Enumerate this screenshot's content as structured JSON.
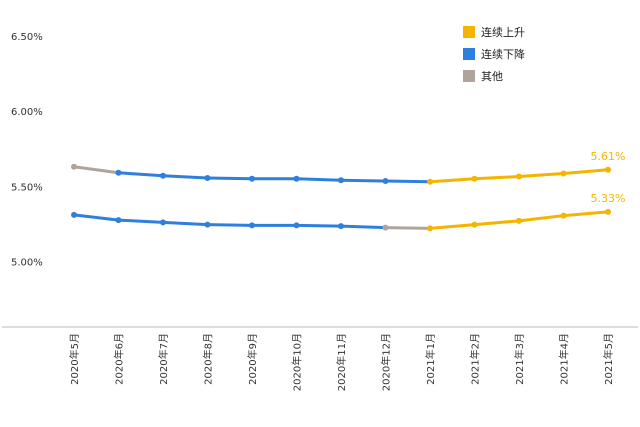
{
  "chart_data": {
    "type": "line",
    "categories": [
      "2020年5月",
      "2020年6月",
      "2020年7月",
      "2020年8月",
      "2020年9月",
      "2020年10月",
      "2020年11月",
      "2020年12月",
      "2021年1月",
      "2021年2月",
      "2021年3月",
      "2021年4月",
      "2021年5月"
    ],
    "series": [
      {
        "values": [
          5.63,
          5.59,
          5.57,
          5.555,
          5.55,
          5.55,
          5.54,
          5.535,
          5.53,
          5.55,
          5.565,
          5.585,
          5.61
        ],
        "segment_types": [
          "其他",
          "连续下降",
          "连续下降",
          "连续下降",
          "连续下降",
          "连续下降",
          "连续下降",
          "连续下降",
          "连续上升",
          "连续上升",
          "连续上升",
          "连续上升"
        ],
        "end_label": "5.61%"
      },
      {
        "values": [
          5.31,
          5.275,
          5.26,
          5.245,
          5.24,
          5.24,
          5.235,
          5.225,
          5.22,
          5.245,
          5.27,
          5.305,
          5.33
        ],
        "segment_types": [
          "连续下降",
          "连续下降",
          "连续下降",
          "连续下降",
          "连续下降",
          "连续下降",
          "连续下降",
          "其他",
          "连续上升",
          "连续上升",
          "连续上升",
          "连续上升"
        ],
        "end_label": "5.33%"
      }
    ],
    "yticks": [
      "6.50%",
      "6.00%",
      "5.50%",
      "5.00%"
    ],
    "ytick_values": [
      6.5,
      6.0,
      5.5,
      5.0
    ],
    "ylim": [
      4.65,
      6.58
    ],
    "legend": [
      {
        "name": "连续上升",
        "color": "#f4b400"
      },
      {
        "name": "连续下降",
        "color": "#2f7fde"
      },
      {
        "name": "其他",
        "color": "#b0a39c"
      }
    ],
    "legend_position": "top-right",
    "grid": false,
    "colors": {
      "up": "#f4b400",
      "down": "#2f7fde",
      "other": "#b0a39c",
      "axis": "#bbbbbb"
    }
  }
}
